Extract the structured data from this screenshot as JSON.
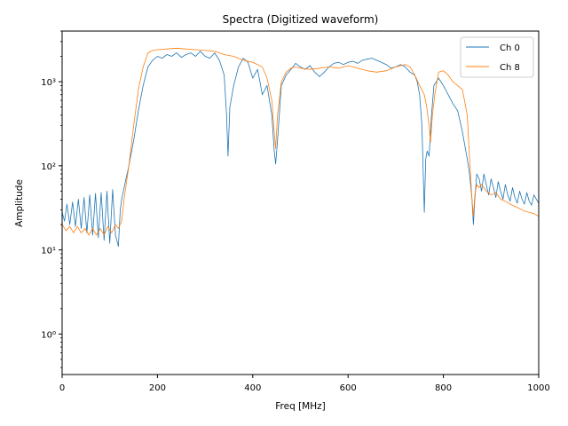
{
  "chart_data": {
    "type": "line",
    "title": "Spectra (Digitized waveform)",
    "xlabel": "Freq [MHz]",
    "ylabel": "Amplitude",
    "xlim": [
      0,
      1000
    ],
    "ylim": [
      0.33,
      4000
    ],
    "yscale": "log",
    "grid": false,
    "legend_position": "top-right",
    "x_ticks": [
      0,
      200,
      400,
      600,
      800,
      1000
    ],
    "x_tick_labels": [
      "0",
      "200",
      "400",
      "600",
      "800",
      "1000"
    ],
    "y_ticks": [
      1,
      10,
      100,
      1000
    ],
    "y_tick_labels": [
      "10⁰",
      "10¹",
      "10²",
      "10³"
    ],
    "series": [
      {
        "name": "Ch 0",
        "color": "#1f77b4",
        "x": [
          0,
          5,
          10,
          16,
          22,
          28,
          34,
          40,
          46,
          52,
          58,
          64,
          70,
          76,
          82,
          88,
          94,
          100,
          106,
          112,
          118,
          122,
          125,
          130,
          140,
          150,
          160,
          170,
          180,
          190,
          200,
          210,
          220,
          230,
          240,
          250,
          260,
          270,
          280,
          290,
          300,
          310,
          320,
          330,
          340,
          345,
          348,
          352,
          360,
          370,
          380,
          390,
          400,
          410,
          415,
          420,
          430,
          440,
          445,
          448,
          452,
          460,
          470,
          480,
          490,
          500,
          510,
          520,
          530,
          540,
          550,
          560,
          570,
          580,
          590,
          600,
          610,
          620,
          630,
          640,
          650,
          660,
          670,
          680,
          690,
          700,
          710,
          720,
          730,
          740,
          745,
          750,
          755,
          760,
          763,
          766,
          770,
          775,
          780,
          790,
          800,
          810,
          820,
          830,
          840,
          850,
          855,
          860,
          863,
          866,
          870,
          875,
          880,
          885,
          890,
          895,
          900,
          905,
          910,
          915,
          920,
          925,
          930,
          935,
          940,
          945,
          950,
          955,
          960,
          965,
          970,
          975,
          980,
          985,
          990,
          995,
          1000
        ],
        "y": [
          28,
          22,
          35,
          20,
          37,
          19,
          40,
          18,
          42,
          16,
          45,
          15,
          47,
          14,
          48,
          13,
          50,
          12,
          52,
          15,
          11,
          30,
          40,
          55,
          100,
          200,
          450,
          900,
          1500,
          1800,
          2000,
          1900,
          2100,
          2000,
          2200,
          1950,
          2100,
          2200,
          2000,
          2300,
          2000,
          1900,
          2200,
          1800,
          1200,
          400,
          130,
          500,
          900,
          1500,
          1900,
          1700,
          1100,
          1400,
          1000,
          700,
          900,
          400,
          150,
          105,
          200,
          900,
          1200,
          1400,
          1650,
          1500,
          1400,
          1550,
          1300,
          1150,
          1300,
          1500,
          1650,
          1700,
          1600,
          1700,
          1750,
          1650,
          1800,
          1850,
          1900,
          1800,
          1700,
          1600,
          1450,
          1500,
          1600,
          1500,
          1300,
          1200,
          1000,
          700,
          300,
          28,
          120,
          150,
          130,
          400,
          900,
          1100,
          900,
          700,
          550,
          450,
          250,
          120,
          80,
          40,
          20,
          40,
          80,
          70,
          50,
          80,
          60,
          45,
          70,
          55,
          42,
          65,
          50,
          40,
          60,
          45,
          38,
          55,
          42,
          36,
          50,
          40,
          35,
          48,
          38,
          34,
          45,
          40,
          36
        ]
      },
      {
        "name": "Ch 8",
        "color": "#ff7f0e",
        "x": [
          0,
          8,
          16,
          24,
          32,
          40,
          48,
          56,
          64,
          72,
          80,
          88,
          96,
          104,
          112,
          118,
          125,
          130,
          140,
          150,
          160,
          170,
          180,
          190,
          200,
          220,
          240,
          260,
          280,
          300,
          320,
          340,
          360,
          380,
          400,
          410,
          420,
          430,
          440,
          445,
          448,
          452,
          460,
          470,
          480,
          490,
          500,
          520,
          540,
          560,
          580,
          600,
          620,
          640,
          660,
          680,
          700,
          720,
          730,
          740,
          750,
          760,
          765,
          770,
          773,
          777,
          782,
          790,
          800,
          810,
          820,
          830,
          840,
          850,
          855,
          860,
          863,
          866,
          870,
          875,
          880,
          890,
          900,
          910,
          920,
          930,
          940,
          950,
          960,
          970,
          980,
          990,
          1000
        ],
        "y": [
          20,
          17,
          19,
          16,
          19,
          16,
          18,
          15,
          18,
          15,
          18,
          15,
          19,
          16,
          20,
          18,
          22,
          40,
          100,
          300,
          800,
          1500,
          2200,
          2350,
          2400,
          2450,
          2500,
          2450,
          2400,
          2350,
          2300,
          2100,
          2000,
          1800,
          1700,
          1600,
          1500,
          1100,
          600,
          250,
          160,
          400,
          1000,
          1300,
          1450,
          1500,
          1450,
          1400,
          1450,
          1500,
          1450,
          1550,
          1450,
          1350,
          1300,
          1350,
          1500,
          1600,
          1500,
          1200,
          900,
          700,
          500,
          300,
          190,
          400,
          700,
          1300,
          1350,
          1200,
          1000,
          900,
          800,
          400,
          120,
          40,
          25,
          45,
          60,
          55,
          60,
          50,
          45,
          48,
          40,
          38,
          35,
          33,
          31,
          29,
          28,
          27,
          25
        ]
      }
    ]
  }
}
